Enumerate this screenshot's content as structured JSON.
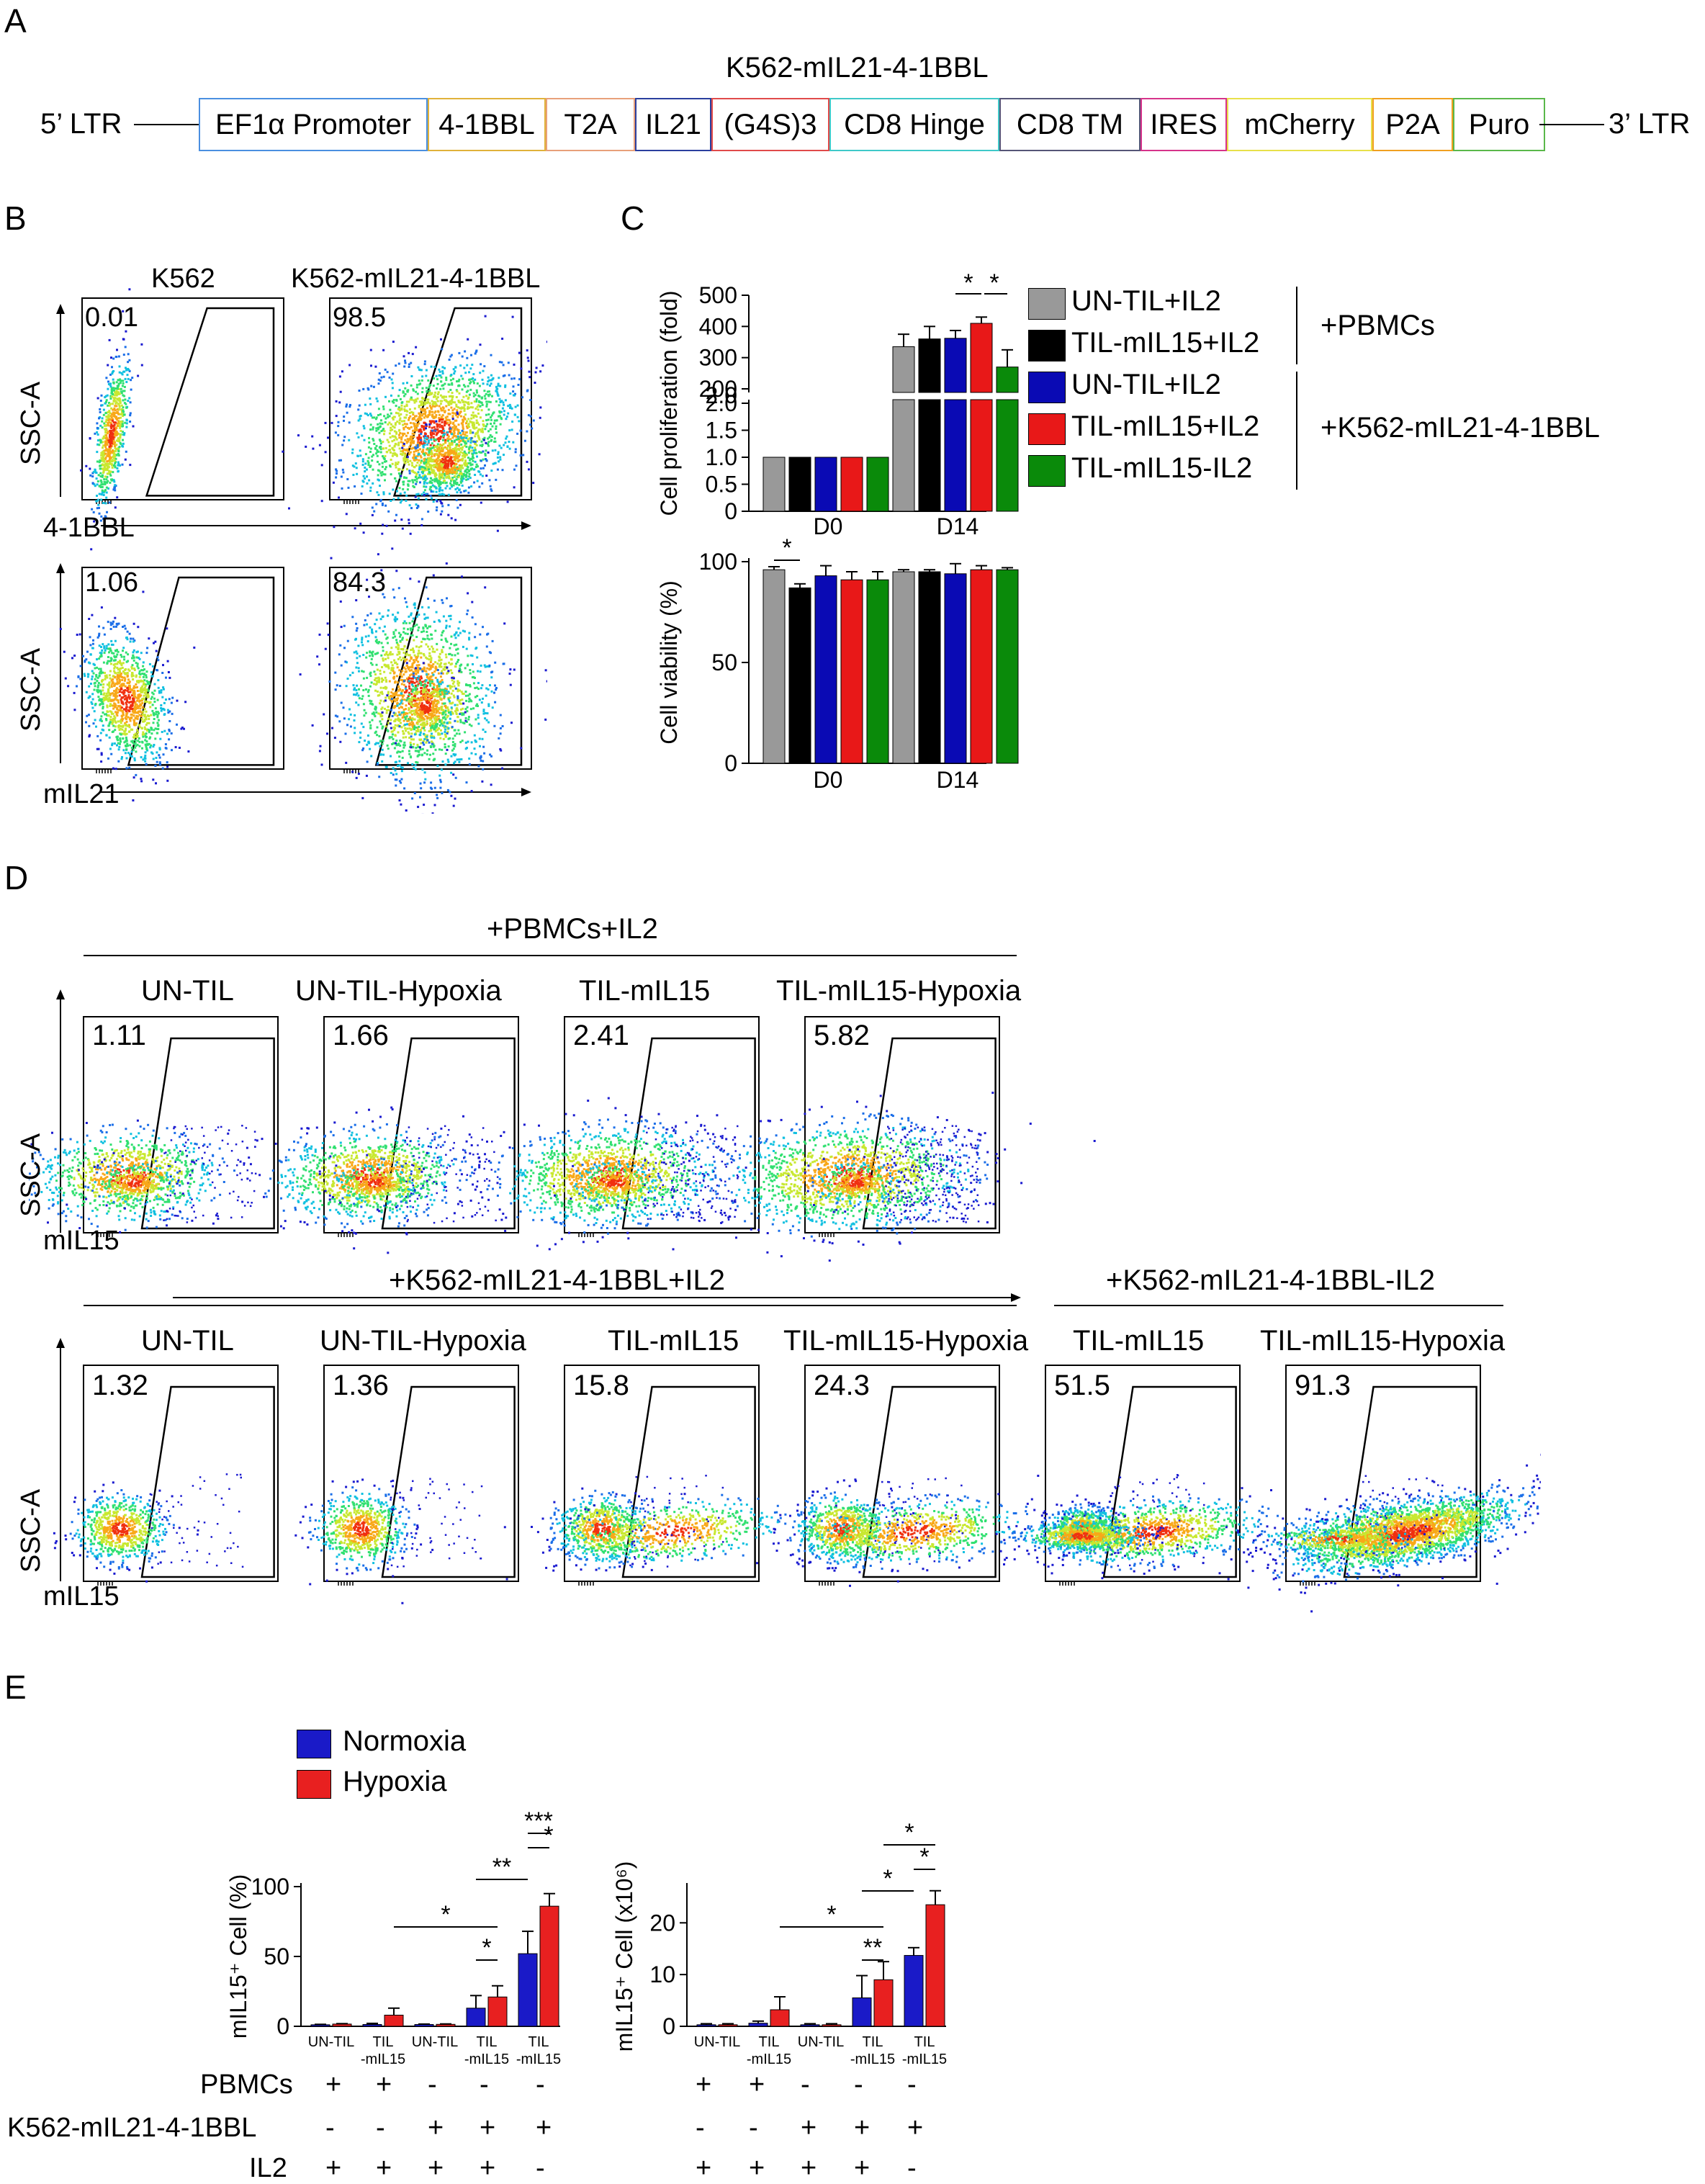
{
  "panels": {
    "A": "A",
    "B": "B",
    "C": "C",
    "D": "D",
    "E": "E"
  },
  "construct": {
    "title": "K562-mIL21-4-1BBL",
    "ltr5": "5’ LTR",
    "ltr3": "3’ LTR",
    "elements": [
      {
        "label": "EF1α Promoter",
        "color": "#4a8fe0"
      },
      {
        "label": "4-1BBL",
        "color": "#e0b23a"
      },
      {
        "label": "T2A",
        "color": "#e8a07a"
      },
      {
        "label": "IL21",
        "color": "#2a3f9e"
      },
      {
        "label": "(G4S)3",
        "color": "#e04a4a"
      },
      {
        "label": "CD8 Hinge",
        "color": "#3fc9c9"
      },
      {
        "label": "CD8 TM",
        "color": "#555577"
      },
      {
        "label": "IRES",
        "color": "#d6338a"
      },
      {
        "label": "mCherry",
        "color": "#e8e04a"
      },
      {
        "label": "P2A",
        "color": "#f0a020"
      },
      {
        "label": "Puro",
        "color": "#5ab84a"
      }
    ]
  },
  "panelB": {
    "col_titles": [
      "K562",
      "K562-mIL21-4-1BBL"
    ],
    "y_label": "SSC-A",
    "row1_x": "4-1BBL",
    "row2_x": "mIL21",
    "values": [
      "0.01",
      "98.5",
      "1.06",
      "84.3"
    ]
  },
  "panelD": {
    "group1": "+PBMCs+IL2",
    "group2": "+K562-mIL21-4-1BBL+IL2",
    "group3": "+K562-mIL21-4-1BBL-IL2",
    "row1_titles": [
      "UN-TIL",
      "UN-TIL-Hypoxia",
      "TIL-mIL15",
      "TIL-mIL15-Hypoxia"
    ],
    "row1_values": [
      "1.11",
      "1.66",
      "2.41",
      "5.82"
    ],
    "row2_titles": [
      "UN-TIL",
      "UN-TIL-Hypoxia",
      "TIL-mIL15",
      "TIL-mIL15-Hypoxia",
      "TIL-mIL15",
      "TIL-mIL15-Hypoxia"
    ],
    "row2_values": [
      "1.32",
      "1.36",
      "15.8",
      "24.3",
      "51.5",
      "91.3"
    ],
    "y_label": "SSC-A",
    "x_label": "mIL15"
  },
  "chart_data": [
    {
      "id": "C-proliferation",
      "type": "bar",
      "ylabel": "Cell proliferation (fold)",
      "categories": [
        "D0",
        "D14"
      ],
      "y_lower_ticks": [
        "0",
        "0.5",
        "1.0",
        "1.5",
        "2.0",
        "2.0"
      ],
      "y_upper_ticks": [
        "200",
        "300",
        "400",
        "500"
      ],
      "series": [
        {
          "name": "UN-TIL+IL2",
          "color": "#999999",
          "values": [
            1,
            335
          ],
          "errors": [
            0,
            40
          ]
        },
        {
          "name": "TIL-mIL15+IL2",
          "color": "#000000",
          "values": [
            1,
            360
          ],
          "errors": [
            0,
            40
          ]
        },
        {
          "name": "UN-TIL+IL2",
          "color": "#0a0ab4",
          "values": [
            1,
            362
          ],
          "errors": [
            0,
            25
          ]
        },
        {
          "name": "TIL-mIL15+IL2",
          "color": "#e81818",
          "values": [
            1,
            410
          ],
          "errors": [
            0,
            20
          ]
        },
        {
          "name": "TIL-mIL15-IL2",
          "color": "#0a8a0a",
          "values": [
            1,
            270
          ],
          "errors": [
            0,
            55
          ]
        }
      ],
      "significance": [
        "*",
        "*"
      ]
    },
    {
      "id": "C-viability",
      "type": "bar",
      "ylabel": "Cell viability (%)",
      "categories": [
        "D0",
        "D14"
      ],
      "yticks": [
        "0",
        "50",
        "100"
      ],
      "ylim": [
        0,
        100
      ],
      "series": [
        {
          "name": "UN-TIL+IL2",
          "color": "#999999",
          "values": [
            96,
            95
          ],
          "errors": [
            1.5,
            1
          ]
        },
        {
          "name": "TIL-mIL15+IL2",
          "color": "#000000",
          "values": [
            87,
            95
          ],
          "errors": [
            2,
            1
          ]
        },
        {
          "name": "UN-TIL+IL2",
          "color": "#0a0ab4",
          "values": [
            93,
            94
          ],
          "errors": [
            5,
            5
          ]
        },
        {
          "name": "TIL-mIL15+IL2",
          "color": "#e81818",
          "values": [
            91,
            96
          ],
          "errors": [
            4,
            2
          ]
        },
        {
          "name": "TIL-mIL15-IL2",
          "color": "#0a8a0a",
          "values": [
            91,
            96
          ],
          "errors": [
            4,
            1
          ]
        }
      ],
      "significance": [
        "*"
      ]
    },
    {
      "id": "E-percent",
      "type": "bar",
      "ylabel": "mIL15⁺ Cell (%)",
      "yticks": [
        "0",
        "50",
        "100"
      ],
      "ylim": [
        0,
        100
      ],
      "categories": [
        "UN-TIL",
        "TIL\n-mIL15",
        "UN-TIL",
        "TIL\n-mIL15",
        "TIL\n-mIL15"
      ],
      "series": [
        {
          "name": "Normoxia",
          "color": "#1a1ac8",
          "values": [
            1.1,
            1.3,
            1.3,
            13,
            52
          ],
          "errors": [
            0.3,
            0.8,
            0.3,
            9,
            16
          ]
        },
        {
          "name": "Hypoxia",
          "color": "#e82020",
          "values": [
            1.6,
            8,
            1.4,
            21,
            86
          ],
          "errors": [
            0.3,
            5,
            0.3,
            8,
            9
          ]
        }
      ],
      "significance": [
        "*",
        "*",
        "**",
        "***",
        "*"
      ]
    },
    {
      "id": "E-count",
      "type": "bar",
      "ylabel": "mIL15⁺ Cell (x10⁶)",
      "yticks": [
        "0",
        "10",
        "20"
      ],
      "ylim": [
        0,
        27
      ],
      "categories": [
        "UN-TIL",
        "TIL\n-mIL15",
        "UN-TIL",
        "TIL\n-mIL15",
        "TIL\n-mIL15"
      ],
      "series": [
        {
          "name": "Normoxia",
          "color": "#1a1ac8",
          "values": [
            0.3,
            0.6,
            0.3,
            5.5,
            13.7
          ],
          "errors": [
            0.2,
            0.4,
            0.2,
            4.3,
            1.5
          ]
        },
        {
          "name": "Hypoxia",
          "color": "#e82020",
          "values": [
            0.3,
            3.2,
            0.3,
            9,
            23.5
          ],
          "errors": [
            0.2,
            2.5,
            0.2,
            3.5,
            2.7
          ]
        }
      ],
      "significance": [
        "*",
        "**",
        "*",
        "*",
        "*"
      ]
    }
  ],
  "legendC": {
    "items": [
      "UN-TIL+IL2",
      "TIL-mIL15+IL2",
      "UN-TIL+IL2",
      "TIL-mIL15+IL2",
      "TIL-mIL15-IL2"
    ],
    "colors": [
      "#999999",
      "#000000",
      "#0a0ab4",
      "#e81818",
      "#0a8a0a"
    ],
    "groups": [
      "+PBMCs",
      "+K562-mIL21-4-1BBL"
    ]
  },
  "legendE": {
    "items": [
      "Normoxia",
      "Hypoxia"
    ],
    "colors": [
      "#1a1ac8",
      "#e82020"
    ]
  },
  "conditionTable": {
    "rows": [
      {
        "label": "PBMCs",
        "values": [
          "+",
          "+",
          "-",
          "-",
          "-"
        ]
      },
      {
        "label": "K562-mIL21-4-1BBL",
        "values": [
          "-",
          "-",
          "+",
          "+",
          "+"
        ]
      },
      {
        "label": "IL2",
        "values": [
          "+",
          "+",
          "+",
          "+",
          "-"
        ]
      }
    ]
  }
}
